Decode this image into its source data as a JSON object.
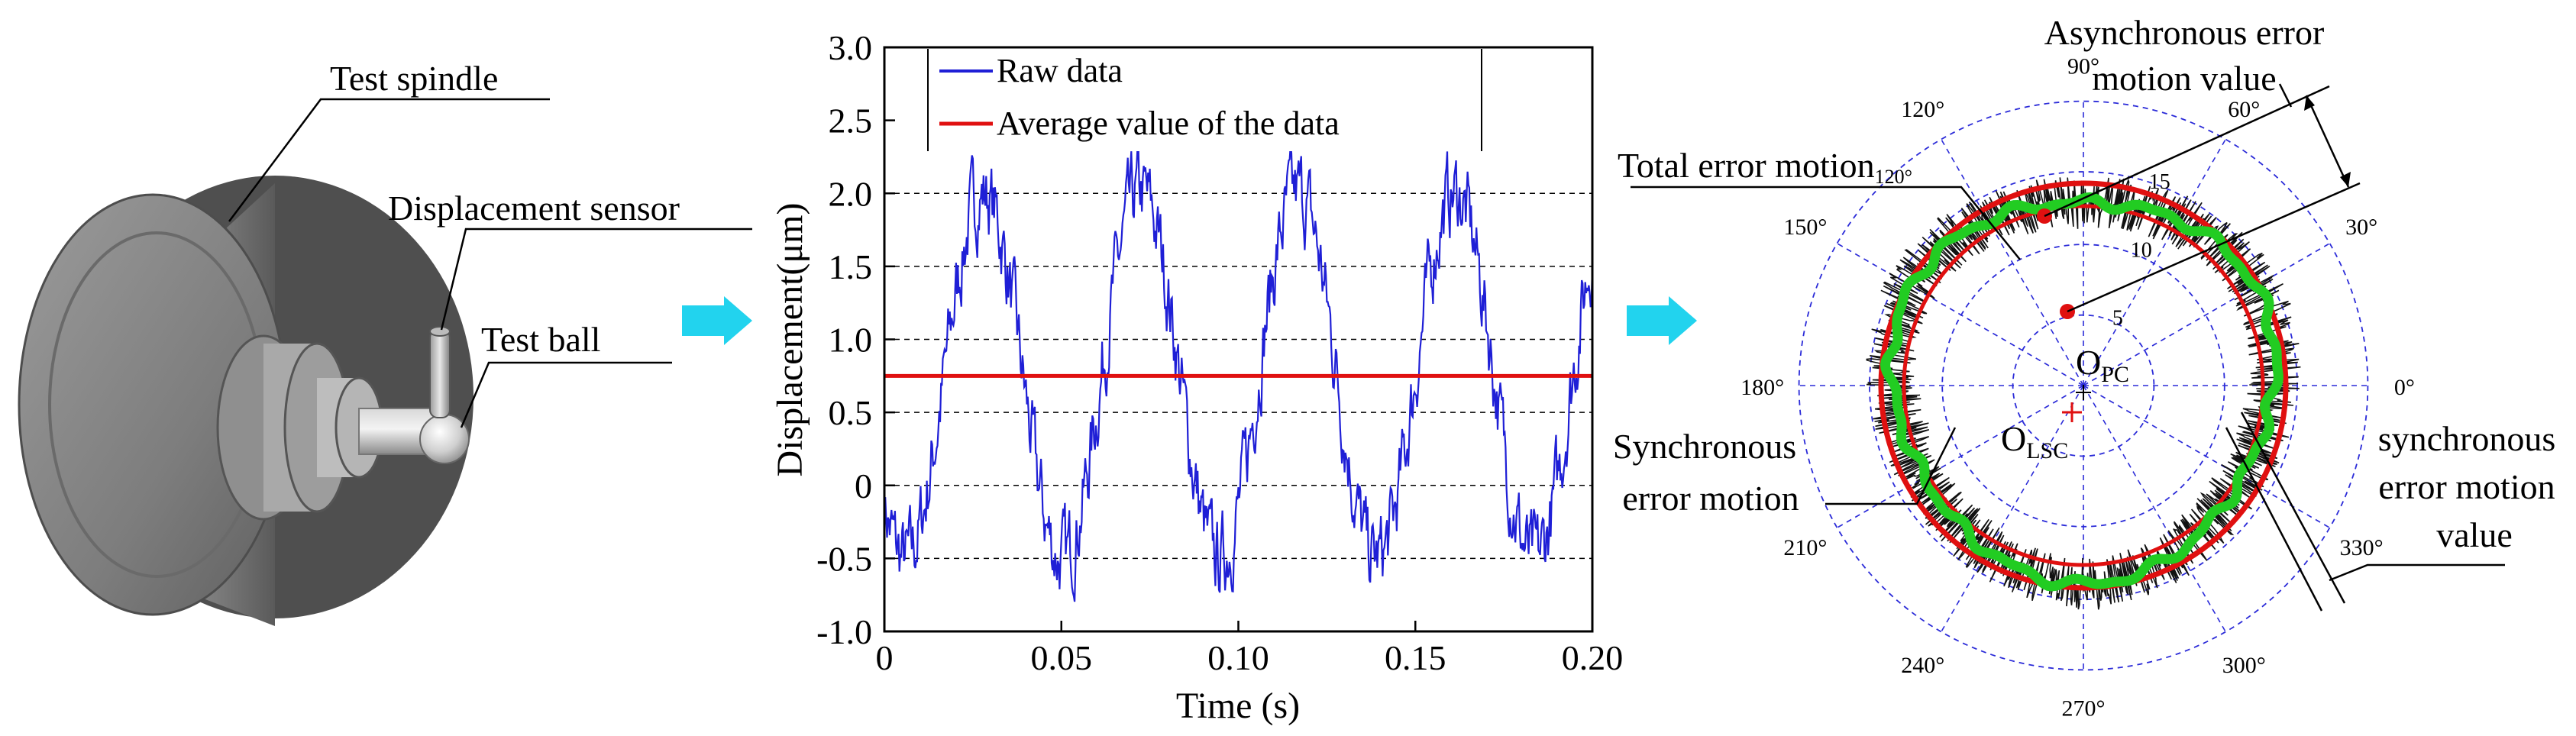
{
  "panel_left": {
    "labels": {
      "spindle": "Test spindle",
      "sensor": "Displacement sensor",
      "ball": "Test ball"
    }
  },
  "arrows": {
    "color": "#22d3ee"
  },
  "chart_data": {
    "type": "line",
    "title": "",
    "xlabel": "Time (s)",
    "ylabel": "Displacement(μm)",
    "xlim": [
      0,
      0.2
    ],
    "ylim": [
      -1.0,
      3.0
    ],
    "xticks": [
      0,
      0.05,
      0.1,
      0.15,
      0.2
    ],
    "xtick_labels": [
      "0",
      "0.05",
      "0.10",
      "0.15",
      "0.20"
    ],
    "yticks": [
      -1.0,
      -0.5,
      0,
      0.5,
      1.0,
      1.5,
      2.0,
      2.5,
      3.0
    ],
    "ytick_labels": [
      "-1.0",
      "-0.5",
      "0",
      "0.5",
      "1.0",
      "1.5",
      "2.0",
      "2.5",
      "3.0"
    ],
    "grid_y": [
      -0.5,
      0,
      0.5,
      1.0,
      1.5,
      2.0
    ],
    "legend_position": "top",
    "series": [
      {
        "name": "Raw data",
        "color": "#1f1fd6",
        "signal": {
          "offset": 0.75,
          "amplitude": 1.25,
          "period": 0.0444,
          "peak_time": 0.028,
          "noise": 0.22,
          "samples": 800
        }
      },
      {
        "name": "Average value of the data",
        "color": "#e01010",
        "constant": 0.75
      }
    ]
  },
  "polar_plot": {
    "angle_labels": [
      "0°",
      "30°",
      "60°",
      "90°",
      "120°",
      "150°",
      "180°",
      "210°",
      "240°",
      "270°",
      "300°",
      "330°"
    ],
    "radius_labels": [
      "5",
      "10",
      "15"
    ],
    "total_error_label": "Total error motion",
    "total_error_angle": "120°",
    "async_label_line1": "Asynchronous  error",
    "async_label_line2": "motion value",
    "sync_label_line1": "Synchronous",
    "sync_label_line2": "error motion",
    "sync_value_line1": "synchronous",
    "sync_value_line2": "error motion",
    "sync_value_line3": "value",
    "center_pc_main": "O",
    "center_pc_sub": "PC",
    "center_lsc_main": "O",
    "center_lsc_sub": "LSC",
    "colors": {
      "grid": "#2b2bd8",
      "noise": "#111111",
      "mean_ring": "#22cc22",
      "circle": "#e01010",
      "marker": "#e01010"
    }
  }
}
